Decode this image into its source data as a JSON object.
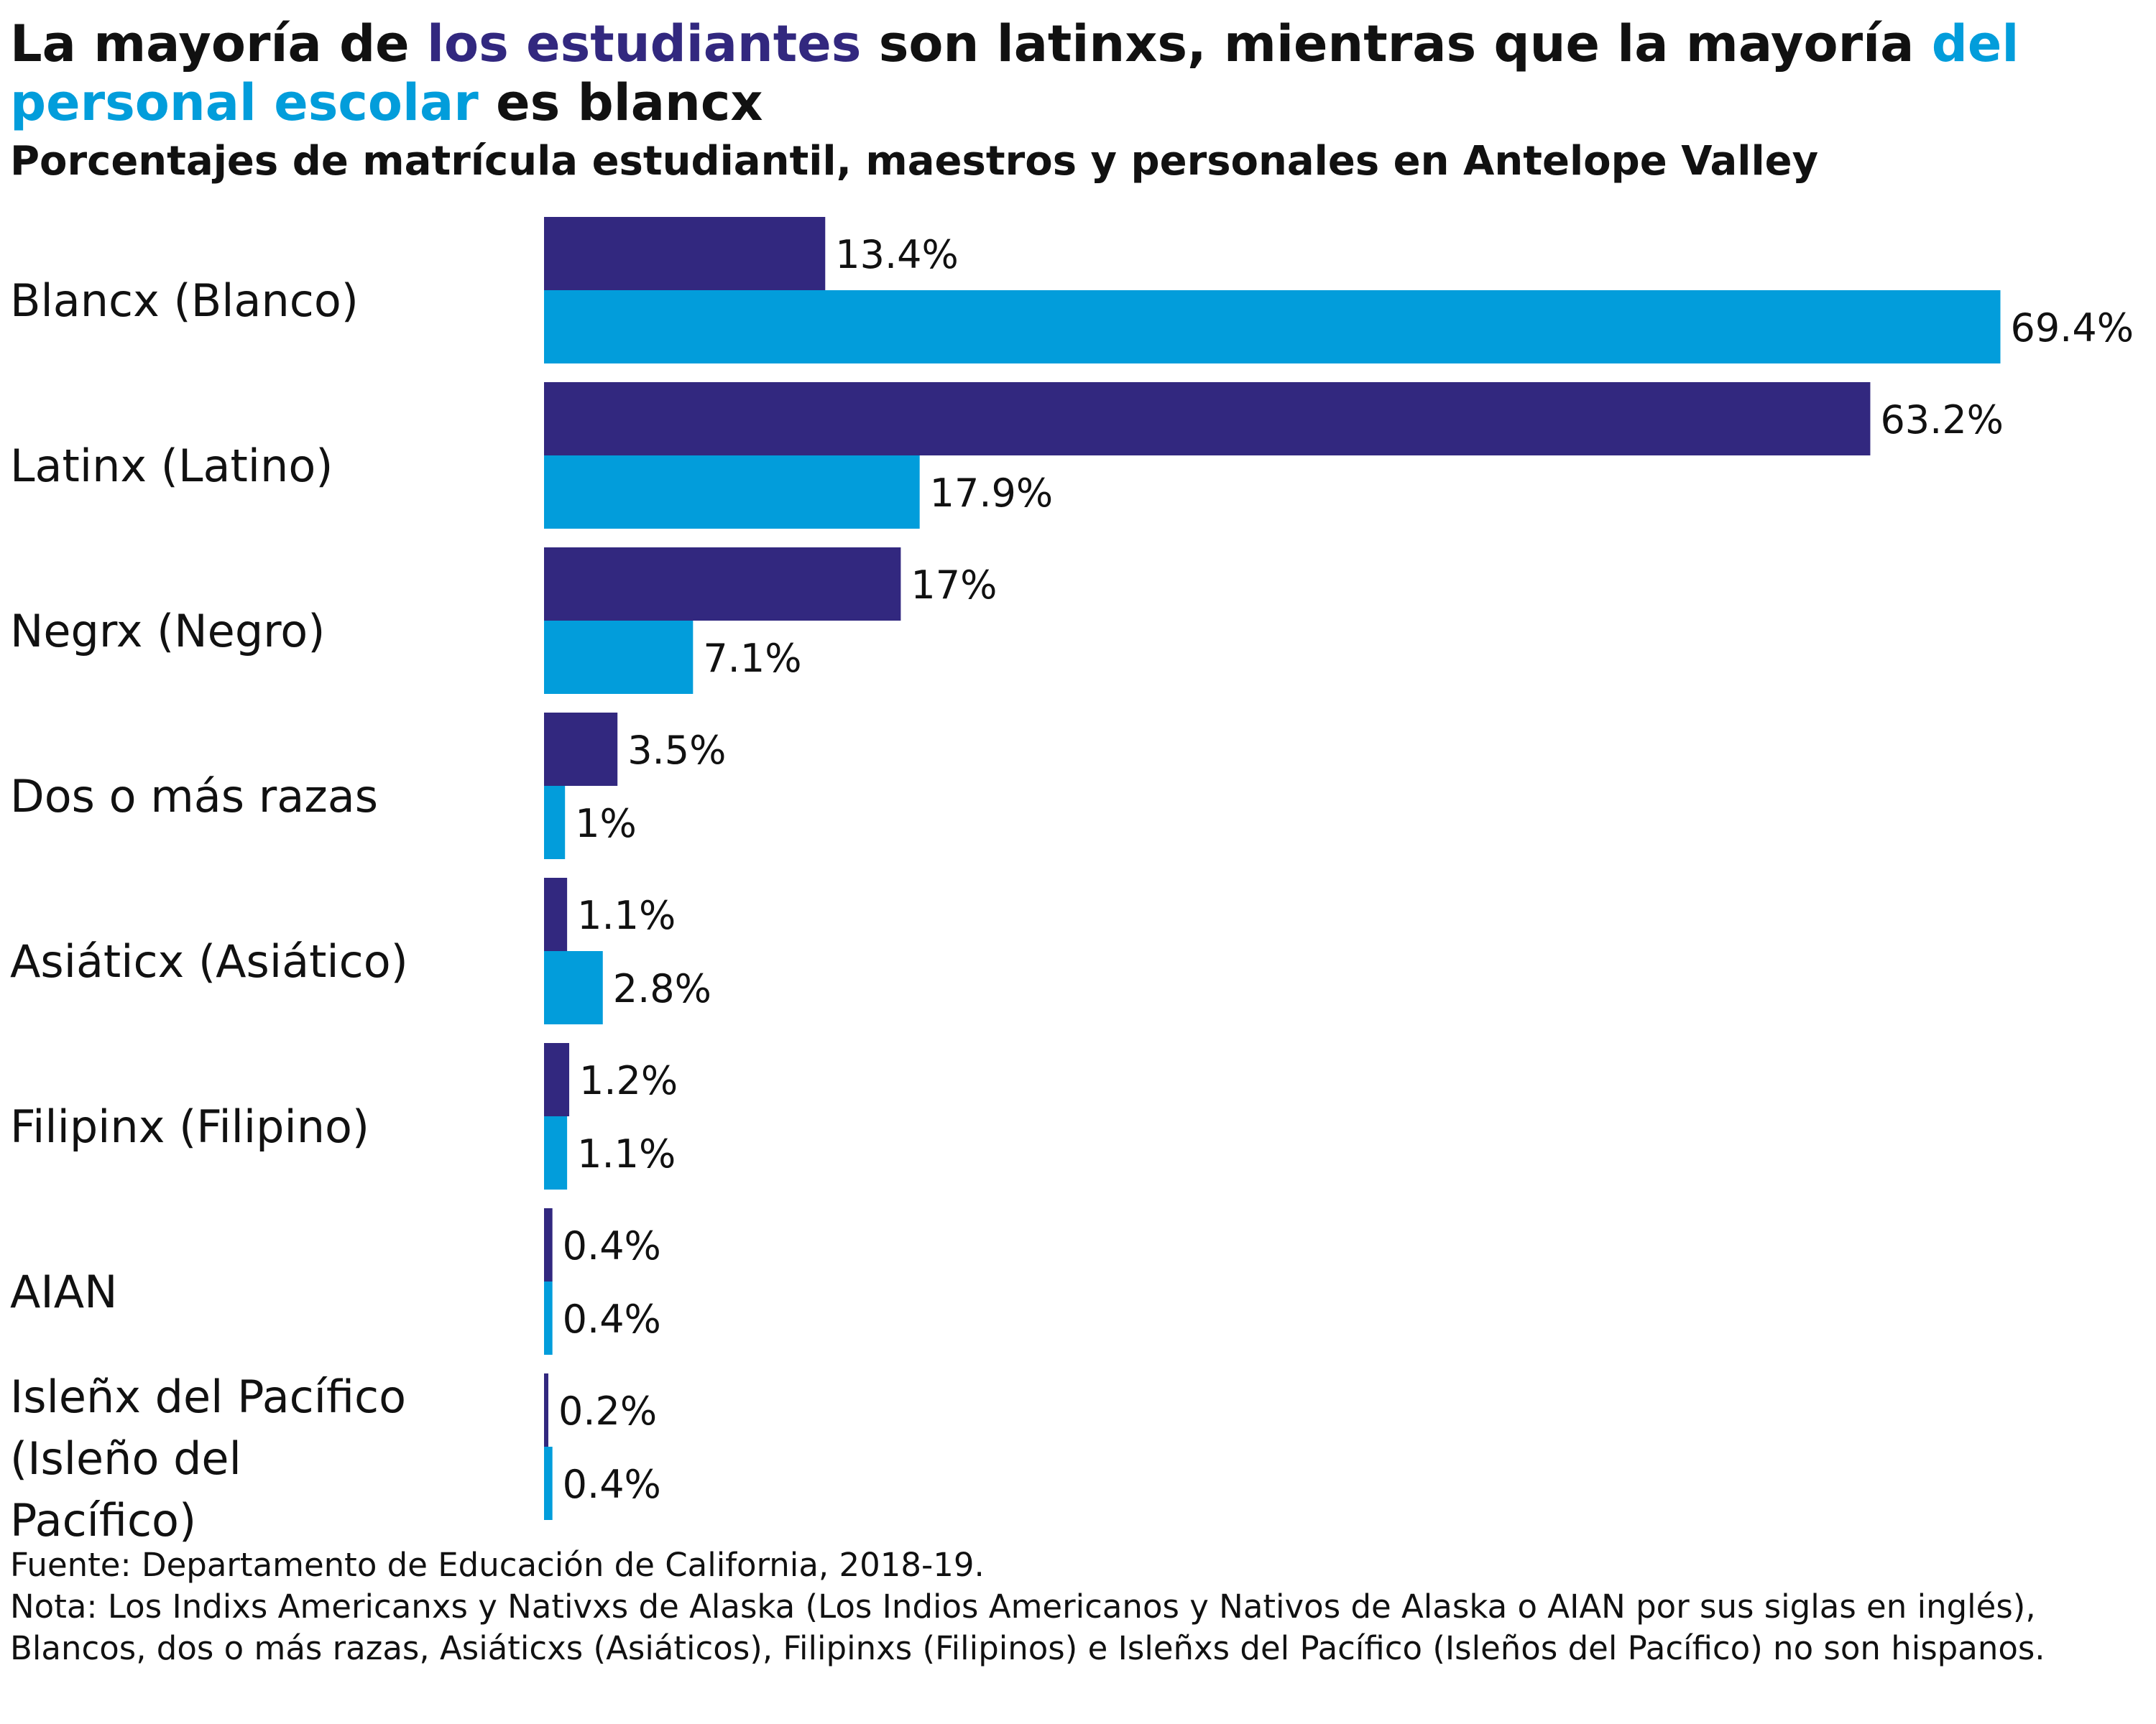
{
  "chart_title": {
    "part1": "La mayoría de ",
    "part2": "los estudiantes",
    "part3": " son latinxs, mientras que la mayoría ",
    "part4": "del personal escolar",
    "part5": " es blancx"
  },
  "chart_subtitle": "Porcentajes de matrícula estudiantil, maestros y personales en Antelope Valley",
  "colors": {
    "students": "#32287f",
    "staff": "#029ddb",
    "text": "#111111"
  },
  "chart_data": {
    "type": "bar",
    "orientation": "horizontal",
    "categories": [
      "Blancx (Blanco)",
      "Latinx (Latino)",
      "Negrx (Negro)",
      "Dos o más razas",
      "Asiáticx (Asiático)",
      "Filipinx (Filipino)",
      "AIAN",
      "Isleñx del Pacífico (Isleño del Pacífico)"
    ],
    "category_lines": [
      [
        "Blancx (Blanco)"
      ],
      [
        "Latinx (Latino)"
      ],
      [
        "Negrx (Negro)"
      ],
      [
        "Dos o más razas"
      ],
      [
        "Asiáticx (Asiático)"
      ],
      [
        "Filipinx (Filipino)"
      ],
      [
        "AIAN"
      ],
      [
        "Isleñx del Pacífico",
        "(Isleño del",
        "Pacífico)"
      ]
    ],
    "series": [
      {
        "key": "students",
        "color": "#32287f",
        "values": [
          13.4,
          63.2,
          17,
          3.5,
          1.1,
          1.2,
          0.4,
          0.2
        ],
        "labels": [
          "13.4%",
          "63.2%",
          "17%",
          "3.5%",
          "1.1%",
          "1.2%",
          "0.4%",
          "0.2%"
        ]
      },
      {
        "key": "staff",
        "color": "#029ddb",
        "values": [
          69.4,
          17.9,
          7.1,
          1,
          2.8,
          1.1,
          0.4,
          0.4
        ],
        "labels": [
          "69.4%",
          "17.9%",
          "7.1%",
          "1%",
          "2.8%",
          "1.1%",
          "0.4%",
          "0.4%"
        ]
      }
    ],
    "xlim": [
      0,
      70
    ],
    "axis_visible": false,
    "grid": false,
    "legend": "none"
  },
  "footnotes": {
    "source": "Fuente: Departamento de Educación de California, 2018-19.",
    "note": "Nota: Los Indixs Americanxs y Nativxs de Alaska (Los Indios Americanos y Nativos de Alaska o AIAN por sus siglas en inglés), Blancos, dos o más razas, Asiáticxs (Asiáticos), Filipinxs (Filipinos) e Isleñxs del Pacífico (Isleños del Pacífico) no son hispanos."
  }
}
